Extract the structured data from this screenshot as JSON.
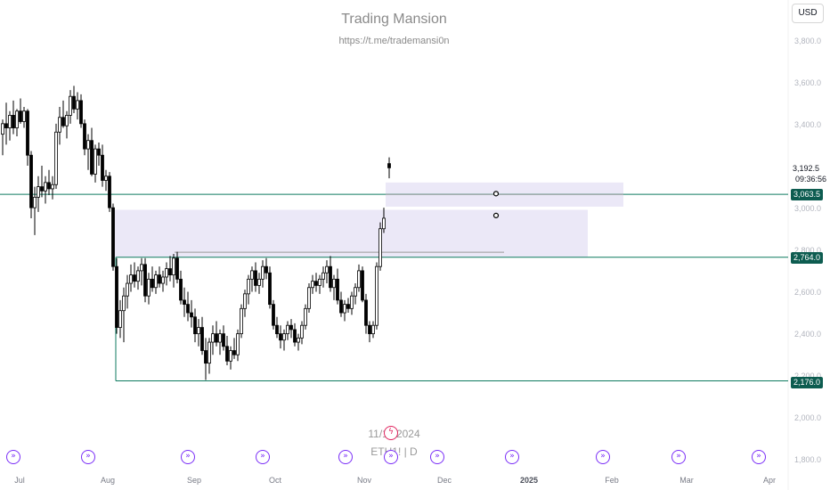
{
  "header": {
    "title": "Trading Mansion",
    "url": "https://t.me/trademansi0n"
  },
  "overlay": {
    "date": "11/11/2024",
    "symbol": "ETH1! | D"
  },
  "currency": "USD",
  "price_axis": {
    "ticks": [
      "3,800.0",
      "3,600.0",
      "3,400.0",
      "3,000.0",
      "2,800.0",
      "2,600.0",
      "2,400.0",
      "2,200.0",
      "2,000.0",
      "1,800.0"
    ],
    "last_price": "3,192.5",
    "countdown": "09:36:56",
    "level_tags": [
      "3,063.5",
      "2,764.0",
      "2,176.0"
    ]
  },
  "time_axis": {
    "ticks": [
      {
        "label": "Jul",
        "bold": false
      },
      {
        "label": "Aug",
        "bold": false
      },
      {
        "label": "Sep",
        "bold": false
      },
      {
        "label": "Oct",
        "bold": false
      },
      {
        "label": "Nov",
        "bold": false
      },
      {
        "label": "Dec",
        "bold": false
      },
      {
        "label": "2025",
        "bold": true
      },
      {
        "label": "Feb",
        "bold": false
      },
      {
        "label": "Mar",
        "bold": false
      },
      {
        "label": "Apr",
        "bold": false
      }
    ]
  },
  "events": {
    "icon": "fast-forward-icon",
    "count": 11,
    "highlight_icon": "lightning-icon"
  },
  "colors": {
    "up_candle": "#ffffff",
    "down_candle": "#000000",
    "level_line": "#0d7a5f",
    "zone_fill": "#ebe8f7",
    "event_icon": "#7b2ff7",
    "lightning": "#e0245e"
  },
  "chart_data": {
    "type": "candlestick",
    "price_range": [
      1800,
      3850
    ],
    "last_price": 3192.5,
    "levels": [
      3063.5,
      2764.0,
      2176.0
    ],
    "zones": [
      {
        "from": 2764.0,
        "to": 2990.0
      },
      {
        "from": 3005.0,
        "to": 3120.0
      }
    ]
  }
}
